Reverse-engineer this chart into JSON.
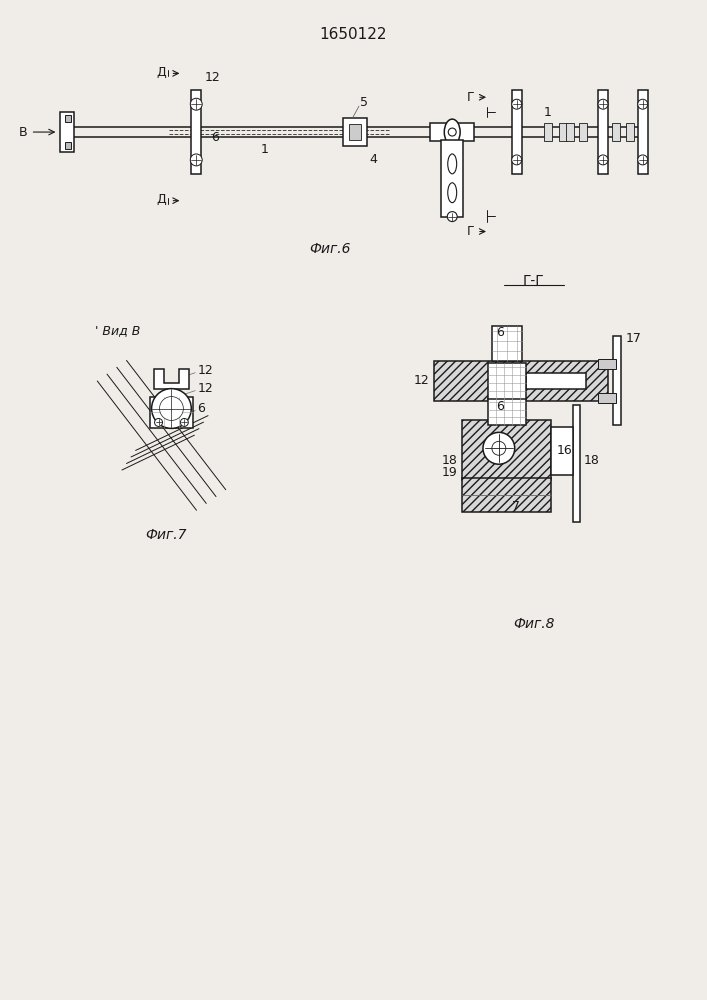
{
  "title": "1650122",
  "bg_color": "#f0ede8",
  "line_color": "#1a1a1a",
  "fig6_label": "Фиг.6",
  "fig7_label": "Фиг.7",
  "fig8_label": "Фиг.8",
  "section_label": "Г-Г",
  "view_label": "' Вид В",
  "fig_label_fontsize": 10,
  "annotation_fontsize": 9,
  "title_fontsize": 11
}
